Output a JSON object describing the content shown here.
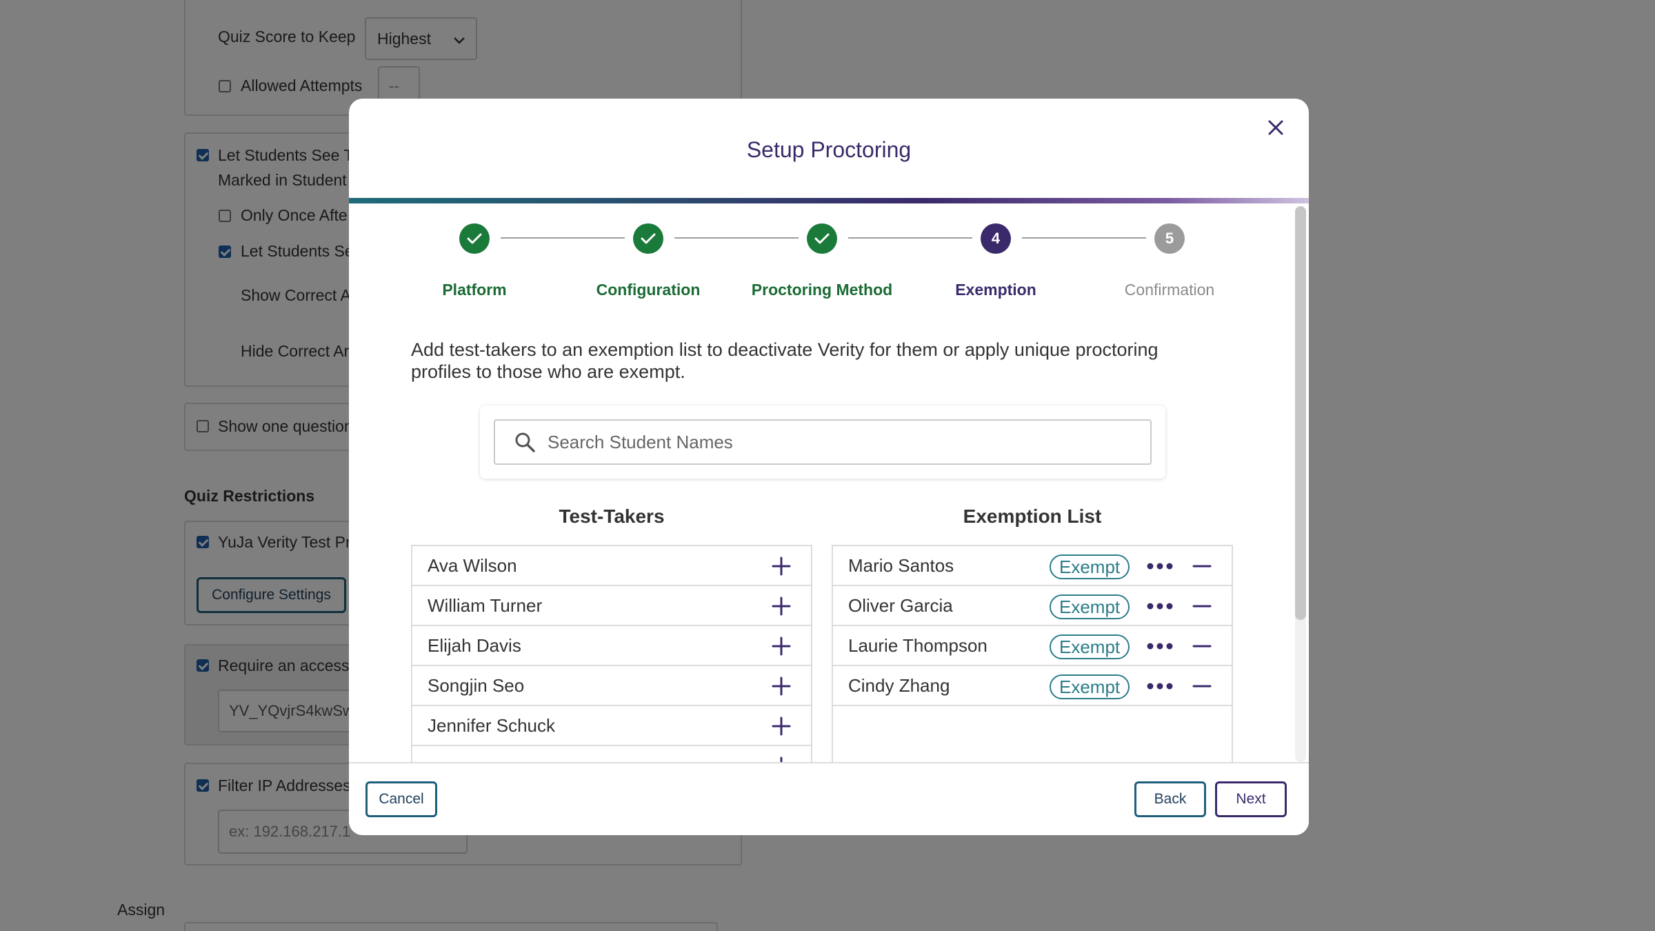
{
  "background": {
    "quiz_score_label": "Quiz Score to Keep",
    "quiz_score_value": "Highest",
    "allowed_attempts_label": "Allowed Attempts",
    "allowed_attempts_value": "--",
    "see_responses_label_line1": "Let Students See Tl",
    "see_responses_label_line2": "Marked in Student",
    "only_once_label": "Only Once Afte",
    "let_students_see_label": "Let Students See",
    "show_correct_label": "Show Correct A",
    "hide_correct_label": "Hide Correct Ar",
    "show_one_question_label": "Show one question",
    "quiz_restrictions_heading": "Quiz Restrictions",
    "yuja_verity_label": "YuJa Verity Test Pro",
    "configure_settings_label": "Configure Settings",
    "access_code_label": "Require an access c",
    "access_code_value": "YV_YQvjrS4kwSw",
    "filter_ip_label": "Filter IP Addresses",
    "filter_ip_placeholder": "ex: 192.168.217.1",
    "assign_label": "Assign"
  },
  "modal": {
    "title": "Setup Proctoring",
    "steps": [
      {
        "label": "Platform",
        "state": "done",
        "number": ""
      },
      {
        "label": "Configuration",
        "state": "done",
        "number": ""
      },
      {
        "label": "Proctoring Method",
        "state": "done",
        "number": ""
      },
      {
        "label": "Exemption",
        "state": "current",
        "number": "4"
      },
      {
        "label": "Confirmation",
        "state": "todo",
        "number": "5"
      }
    ],
    "description": "Add test-takers to an exemption list to deactivate Verity for them or apply unique proctoring profiles to those who are exempt.",
    "search": {
      "placeholder": "Search Student Names",
      "value": ""
    },
    "test_takers": {
      "heading": "Test-Takers",
      "items": [
        "Ava Wilson",
        "William Turner",
        "Elijah Davis",
        "Songjin Seo",
        "Jennifer Schuck"
      ]
    },
    "exemption_list": {
      "heading": "Exemption List",
      "badge": "Exempt",
      "items": [
        "Mario Santos",
        "Oliver Garcia",
        "Laurie Thompson",
        "Cindy Zhang"
      ]
    },
    "footer": {
      "cancel": "Cancel",
      "back": "Back",
      "next": "Next"
    }
  },
  "colors": {
    "done": "#1a7a3a",
    "current": "#3b2a6b",
    "todo": "#9b9b9b",
    "accent_teal": "#2a7b8a"
  }
}
